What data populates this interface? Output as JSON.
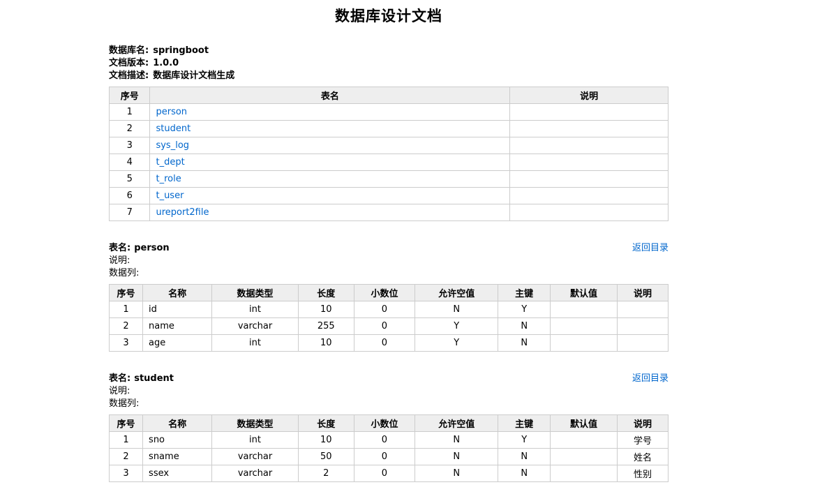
{
  "page": {
    "title": "数据库设计文档"
  },
  "meta": {
    "lines": [
      {
        "label": "数据库名:",
        "value": "springboot"
      },
      {
        "label": "文档版本:",
        "value": "1.0.0"
      },
      {
        "label": "文档描述:",
        "value": "数据库设计文档生成"
      }
    ]
  },
  "toc": {
    "headers": [
      "序号",
      "表名",
      "说明"
    ],
    "rows": [
      [
        "1",
        "person",
        ""
      ],
      [
        "2",
        "student",
        ""
      ],
      [
        "3",
        "sys_log",
        ""
      ],
      [
        "4",
        "t_dept",
        ""
      ],
      [
        "5",
        "t_role",
        ""
      ],
      [
        "6",
        "t_user",
        ""
      ],
      [
        "7",
        "ureport2file",
        ""
      ]
    ]
  },
  "sections": [
    {
      "table_label": "表名:",
      "table_name": "person",
      "back_link": "返回目录",
      "desc_label": "说明:",
      "columns_label": "数据列:",
      "headers": [
        "序号",
        "名称",
        "数据类型",
        "长度",
        "小数位",
        "允许空值",
        "主键",
        "默认值",
        "说明"
      ],
      "rows": [
        [
          "1",
          "id",
          "int",
          "10",
          "0",
          "N",
          "Y",
          "",
          ""
        ],
        [
          "2",
          "name",
          "varchar",
          "255",
          "0",
          "Y",
          "N",
          "",
          ""
        ],
        [
          "3",
          "age",
          "int",
          "10",
          "0",
          "Y",
          "N",
          "",
          ""
        ]
      ]
    },
    {
      "table_label": "表名:",
      "table_name": "student",
      "back_link": "返回目录",
      "desc_label": "说明:",
      "columns_label": "数据列:",
      "headers": [
        "序号",
        "名称",
        "数据类型",
        "长度",
        "小数位",
        "允许空值",
        "主键",
        "默认值",
        "说明"
      ],
      "rows": [
        [
          "1",
          "sno",
          "int",
          "10",
          "0",
          "N",
          "Y",
          "",
          "学号"
        ],
        [
          "2",
          "sname",
          "varchar",
          "50",
          "0",
          "N",
          "N",
          "",
          "姓名"
        ],
        [
          "3",
          "ssex",
          "varchar",
          "2",
          "0",
          "N",
          "N",
          "",
          "性别"
        ]
      ]
    }
  ],
  "colors": {
    "link": "#0066cc",
    "header_bg": "#eeeeee",
    "border_outer": "#aaaaaa",
    "border_inner": "#cccccc",
    "text": "#000000"
  }
}
